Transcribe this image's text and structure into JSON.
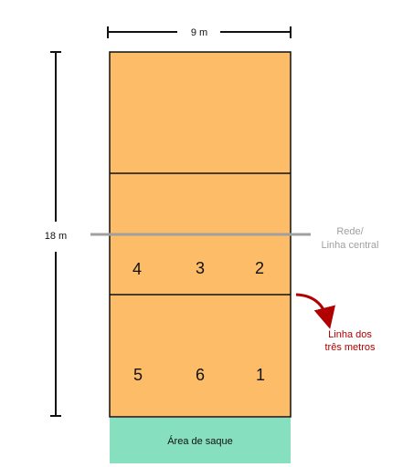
{
  "dimensions": {
    "width_label": "9 m",
    "length_label": "18 m"
  },
  "net": {
    "label_line1": "Rede/",
    "label_line2": "Linha central"
  },
  "attack_line": {
    "label_line1": "Linha dos",
    "label_line2": "três metros"
  },
  "positions": {
    "front": [
      "4",
      "3",
      "2"
    ],
    "back": [
      "5",
      "6",
      "1"
    ]
  },
  "service_area": {
    "label": "Área de saque"
  },
  "colors": {
    "court": "#fdbc68",
    "service_area": "#86dfbf",
    "net": "#a0a0a0",
    "accent": "#b00000"
  }
}
